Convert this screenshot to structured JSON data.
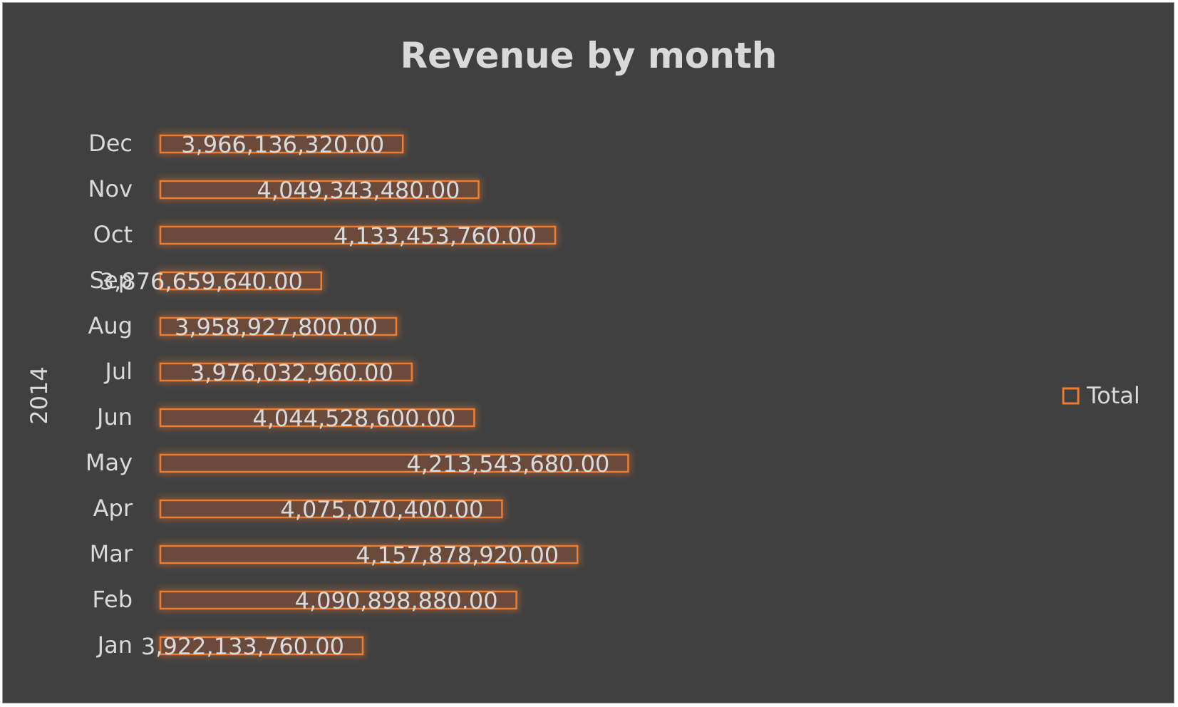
{
  "chart_data": {
    "type": "bar",
    "orientation": "horizontal",
    "title": "Revenue by month",
    "group_label": "2014",
    "categories": [
      "Jan",
      "Feb",
      "Mar",
      "Apr",
      "May",
      "Jun",
      "Jul",
      "Aug",
      "Sep",
      "Oct",
      "Nov",
      "Dec"
    ],
    "series": [
      {
        "name": "Total",
        "values": [
          3922133760.0,
          4090898880.0,
          4157878920.0,
          4075070400.0,
          4213543680.0,
          4044528600.0,
          3976032960.0,
          3958927800.0,
          3876659640.0,
          4133453760.0,
          4049343480.0,
          3966136320.0
        ],
        "labels": [
          "3,922,133,760.00",
          "4,090,898,880.00",
          "4,157,878,920.00",
          "4,075,070,400.00",
          "4,213,543,680.00",
          "4,044,528,600.00",
          "3,976,032,960.00",
          "3,958,927,800.00",
          "3,876,659,640.00",
          "4,133,453,760.00",
          "4,049,343,480.00",
          "3,966,136,320.00"
        ]
      }
    ],
    "xlim": [
      3700000000,
      4480000000
    ],
    "grid": false,
    "legend": "right",
    "category_order": "Jan at bottom, Dec at top"
  },
  "colors": {
    "background": "#404040",
    "bar_fill": "#6a4a3a",
    "bar_stroke": "#ed7d31",
    "text": "#d9d9d9"
  }
}
